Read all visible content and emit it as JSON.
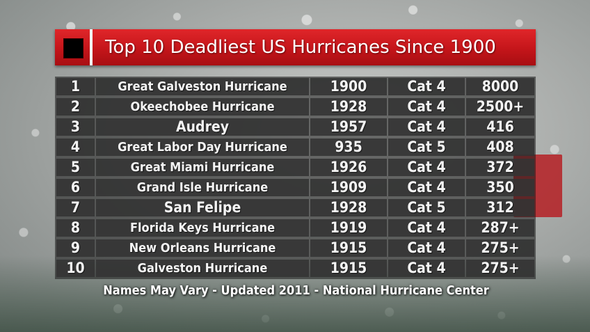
{
  "title": "Top 10 Deadliest US Hurricanes Since 1900",
  "footer": "Names May Vary - Updated 2011 - National Hurricane Center",
  "colors": {
    "title_bar": "#c4151a",
    "table_cell": "#343434",
    "text": "#f4f4f4"
  },
  "icons": {
    "title_square": "black-square-icon"
  },
  "rows": [
    {
      "rank": "1",
      "name": "Great Galveston Hurricane",
      "year": "1900",
      "category": "Cat 4",
      "deaths": "8000"
    },
    {
      "rank": "2",
      "name": "Okeechobee Hurricane",
      "year": "1928",
      "category": "Cat 4",
      "deaths": "2500+"
    },
    {
      "rank": "3",
      "name": "Audrey",
      "year": "1957",
      "category": "Cat 4",
      "deaths": "416"
    },
    {
      "rank": "4",
      "name": "Great Labor Day Hurricane",
      "year": "935",
      "category": "Cat 5",
      "deaths": "408"
    },
    {
      "rank": "5",
      "name": "Great Miami Hurricane",
      "year": "1926",
      "category": "Cat 4",
      "deaths": "372"
    },
    {
      "rank": "6",
      "name": "Grand Isle Hurricane",
      "year": "1909",
      "category": "Cat 4",
      "deaths": "350"
    },
    {
      "rank": "7",
      "name": "San Felipe",
      "year": "1928",
      "category": "Cat 5",
      "deaths": "312"
    },
    {
      "rank": "8",
      "name": "Florida Keys Hurricane",
      "year": "1919",
      "category": "Cat 4",
      "deaths": "287+"
    },
    {
      "rank": "9",
      "name": "New Orleans Hurricane",
      "year": "1915",
      "category": "Cat 4",
      "deaths": "275+"
    },
    {
      "rank": "10",
      "name": "Galveston Hurricane",
      "year": "1915",
      "category": "Cat 4",
      "deaths": "275+"
    }
  ]
}
